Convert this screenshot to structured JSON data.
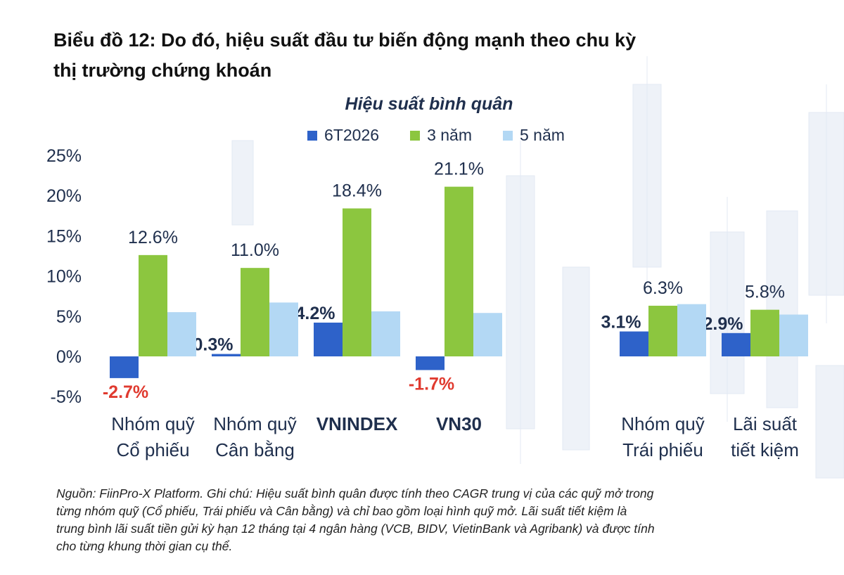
{
  "page": {
    "title_line1": "Biểu đồ 12: Do đó, hiệu suất đầu tư biến động mạnh theo chu kỳ",
    "title_line2": "thị trường chứng khoán",
    "note_line1": "Nguồn: FiinPro-X Platform. Ghi chú: Hiệu suất bình quân được tính theo CAGR trung vị của các quỹ mở trong",
    "note_line2": "từng nhóm quỹ (Cổ phiếu, Trái phiếu và Cân bằng) và chỉ bao gồm loại hình quỹ mở. Lãi suất tiết kiệm là",
    "note_line3": "trung bình lãi suất tiền gửi kỳ hạn 12 tháng tại 4 ngân hàng (VCB, BIDV, VietinBank và Agribank) và được tính",
    "note_line4": "cho từng khung thời gian cụ thể."
  },
  "chart_data": {
    "type": "bar",
    "title": "Hiệu suất bình quân",
    "categories": [
      [
        "Nhóm quỹ",
        "Cổ phiếu"
      ],
      [
        "Nhóm quỹ",
        "Cân bằng"
      ],
      [
        "VNINDEX"
      ],
      [
        "VN30"
      ],
      [
        "Nhóm quỹ",
        "Trái phiếu"
      ],
      [
        "Lãi suất",
        "tiết kiệm"
      ]
    ],
    "category_gap_after_index": 3,
    "series": [
      {
        "name": "6T2026",
        "color": "#2e62c9",
        "values": [
          -2.7,
          0.3,
          4.2,
          -1.7,
          3.1,
          2.9
        ],
        "label_values": [
          "-2.7%",
          "0.3%",
          "4.2%",
          "-1.7%",
          "3.1%",
          "2.9%"
        ]
      },
      {
        "name": "3 năm",
        "color": "#8cc63f",
        "values": [
          12.6,
          11.0,
          18.4,
          21.1,
          6.3,
          5.8
        ],
        "label_values": [
          "12.6%",
          "11.0%",
          "18.4%",
          "21.1%",
          "6.3%",
          "5.8%"
        ]
      },
      {
        "name": "5 năm",
        "color": "#b3d8f4",
        "values": [
          5.5,
          6.7,
          5.6,
          5.4,
          6.5,
          5.2
        ],
        "label_values": []
      }
    ],
    "y_ticks": [
      "-5%",
      "0%",
      "5%",
      "10%",
      "15%",
      "20%",
      "25%"
    ],
    "y_tick_values": [
      -5,
      0,
      5,
      10,
      15,
      20,
      25
    ],
    "ylim": [
      -5,
      25
    ],
    "grid": false,
    "legend": "top",
    "colors": {
      "positive_label": "#1f2f4d",
      "negative_label": "#e03a2f",
      "axis_text": "#1f2f4d"
    }
  }
}
